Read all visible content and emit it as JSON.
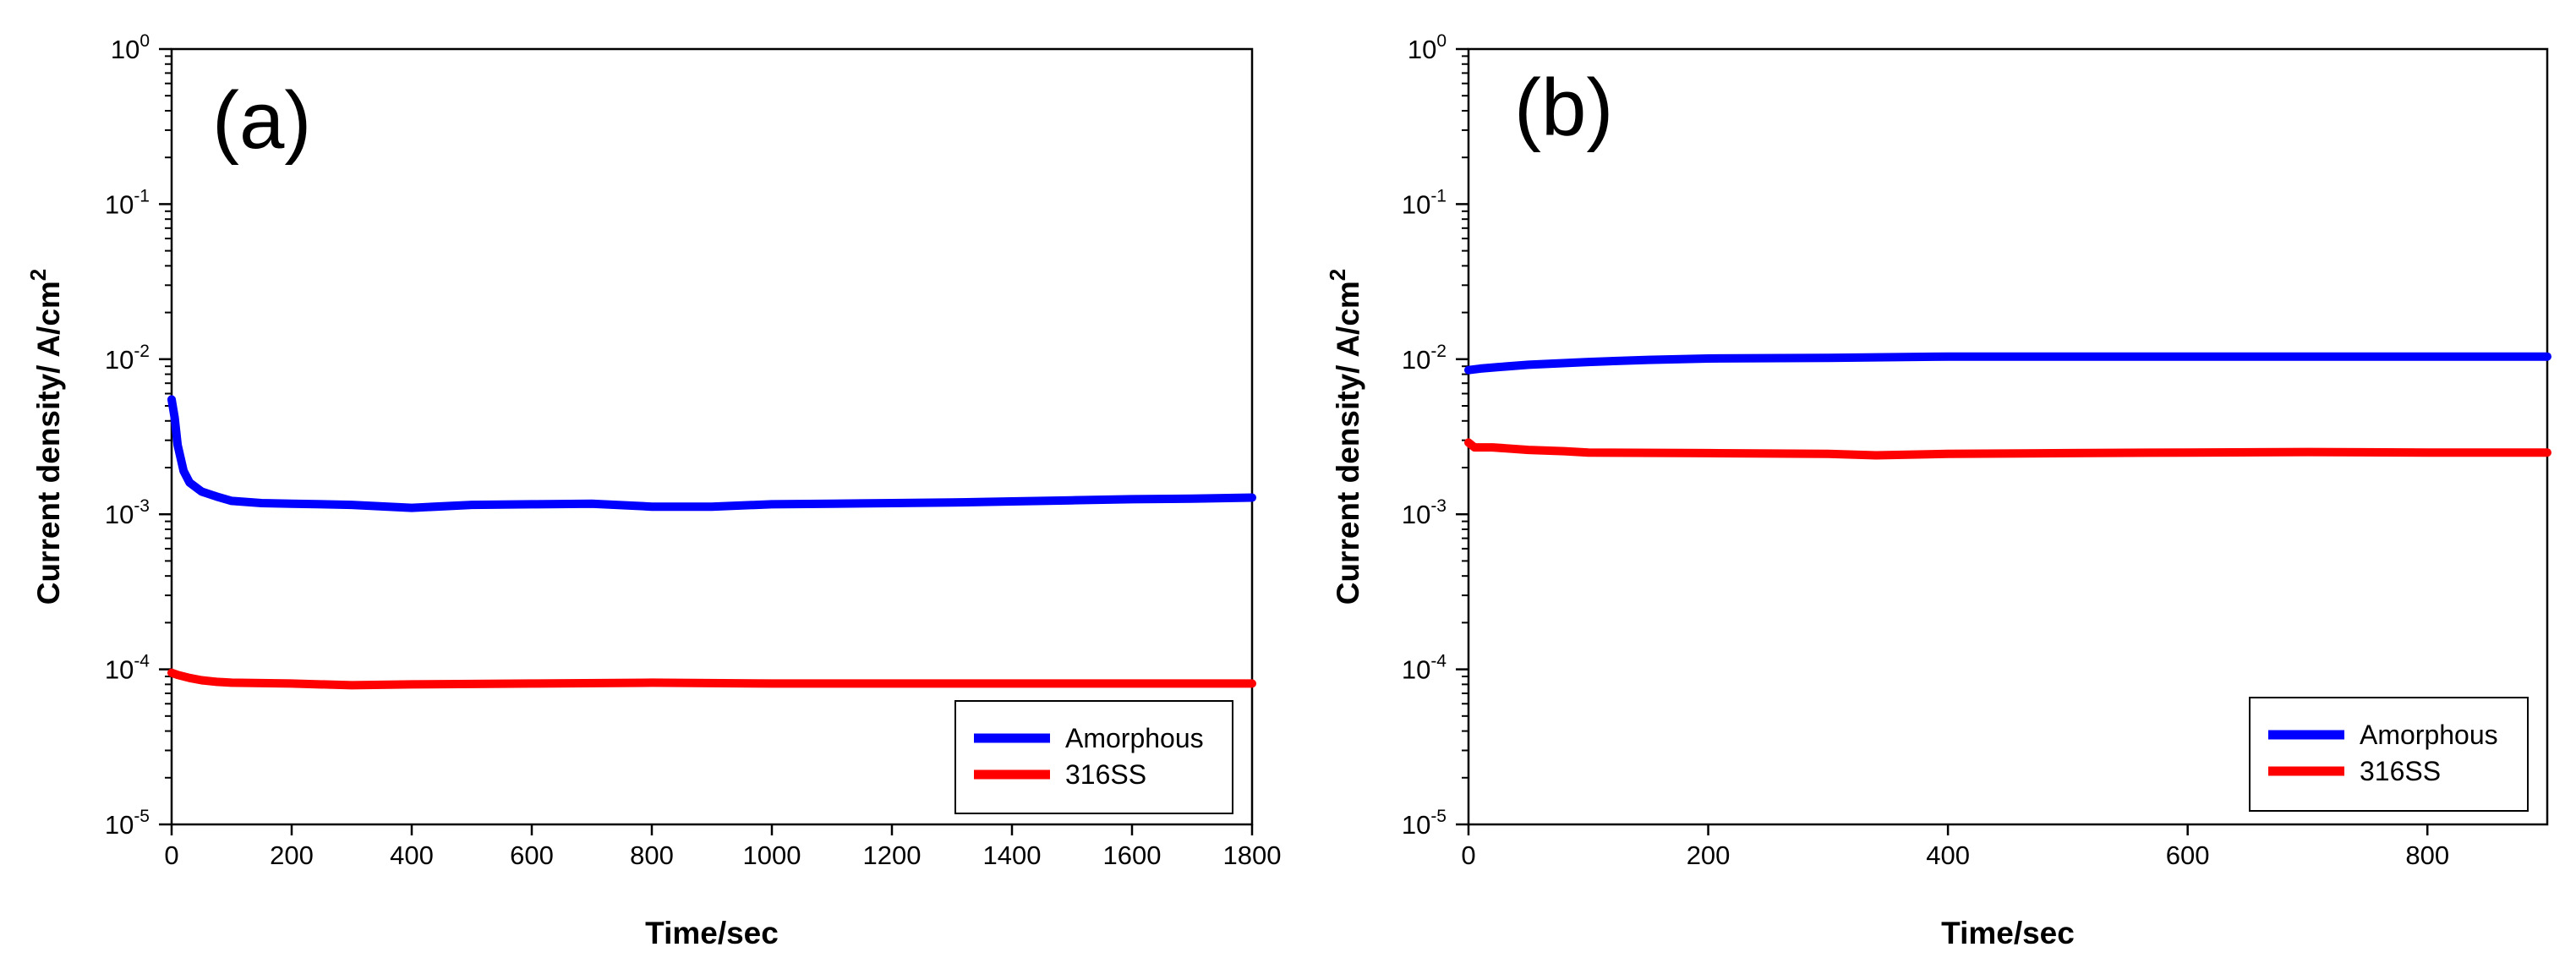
{
  "chart_data": [
    {
      "type": "line",
      "panel_label": "(a)",
      "xlabel": "Time/sec",
      "ylabel_main": "Current density/ A/cm",
      "ylabel_sup": "2",
      "y_scale": "log",
      "xlim": [
        0,
        1800
      ],
      "ylim": [
        1e-05,
        1
      ],
      "x_ticks": [
        0,
        200,
        400,
        600,
        800,
        1000,
        1200,
        1400,
        1600,
        1800
      ],
      "x_tick_labels": [
        "0",
        "200",
        "400",
        "600",
        "800",
        "1000",
        "1200",
        "1400",
        "1600",
        "1800"
      ],
      "y_tick_labels": [
        {
          "exp": 0,
          "base": "10",
          "sup": "0"
        },
        {
          "exp": -1,
          "base": "10",
          "sup": "-1"
        },
        {
          "exp": -2,
          "base": "10",
          "sup": "-2"
        },
        {
          "exp": -3,
          "base": "10",
          "sup": "-3"
        },
        {
          "exp": -4,
          "base": "10",
          "sup": "-4"
        },
        {
          "exp": -5,
          "base": "10",
          "sup": "-5"
        }
      ],
      "legend_position": "bottom-right",
      "series": [
        {
          "name": "Amorphous",
          "color": "#0000ff",
          "x": [
            0,
            5,
            10,
            20,
            30,
            50,
            75,
            100,
            150,
            200,
            300,
            400,
            500,
            600,
            700,
            800,
            900,
            1000,
            1100,
            1200,
            1300,
            1400,
            1500,
            1600,
            1700,
            1800
          ],
          "y": [
            0.0055,
            0.0042,
            0.0028,
            0.0019,
            0.0016,
            0.0014,
            0.0013,
            0.00122,
            0.00118,
            0.00117,
            0.00115,
            0.0011,
            0.00115,
            0.00116,
            0.00117,
            0.00112,
            0.00112,
            0.00116,
            0.00117,
            0.00118,
            0.00119,
            0.00121,
            0.00123,
            0.00125,
            0.00126,
            0.00128
          ]
        },
        {
          "name": "316SS",
          "color": "#ff0000",
          "x": [
            0,
            10,
            30,
            50,
            75,
            100,
            200,
            300,
            400,
            600,
            800,
            1000,
            1200,
            1400,
            1600,
            1800
          ],
          "y": [
            9.5e-05,
            9.2e-05,
            8.8e-05,
            8.5e-05,
            8.3e-05,
            8.2e-05,
            8.1e-05,
            7.9e-05,
            8e-05,
            8.1e-05,
            8.2e-05,
            8.1e-05,
            8.1e-05,
            8.1e-05,
            8.1e-05,
            8.1e-05
          ]
        }
      ]
    },
    {
      "type": "line",
      "panel_label": "(b)",
      "xlabel": "Time/sec",
      "ylabel_main": "Current density/ A/cm",
      "ylabel_sup": "2",
      "y_scale": "log",
      "xlim": [
        0,
        900
      ],
      "ylim": [
        1e-05,
        1
      ],
      "x_ticks": [
        0,
        200,
        400,
        600,
        800
      ],
      "x_tick_labels": [
        "0",
        "200",
        "400",
        "600",
        "800"
      ],
      "y_tick_labels": [
        {
          "exp": 0,
          "base": "10",
          "sup": "0"
        },
        {
          "exp": -1,
          "base": "10",
          "sup": "-1"
        },
        {
          "exp": -2,
          "base": "10",
          "sup": "-2"
        },
        {
          "exp": -3,
          "base": "10",
          "sup": "-3"
        },
        {
          "exp": -4,
          "base": "10",
          "sup": "-4"
        },
        {
          "exp": -5,
          "base": "10",
          "sup": "-5"
        }
      ],
      "legend_position": "bottom-right",
      "series": [
        {
          "name": "Amorphous",
          "color": "#0000ff",
          "x": [
            0,
            10,
            25,
            50,
            100,
            150,
            200,
            300,
            400,
            500,
            600,
            700,
            800,
            900
          ],
          "y": [
            0.0085,
            0.0087,
            0.0089,
            0.0092,
            0.0096,
            0.0099,
            0.0101,
            0.0102,
            0.0104,
            0.0104,
            0.0104,
            0.0104,
            0.0104,
            0.0104
          ]
        },
        {
          "name": "316SS",
          "color": "#ff0000",
          "x": [
            0,
            5,
            20,
            50,
            80,
            100,
            200,
            300,
            340,
            400,
            500,
            600,
            700,
            800,
            900
          ],
          "y": [
            0.0029,
            0.0027,
            0.0027,
            0.0026,
            0.00255,
            0.0025,
            0.00248,
            0.00245,
            0.0024,
            0.00245,
            0.00248,
            0.0025,
            0.00252,
            0.0025,
            0.0025
          ]
        }
      ]
    }
  ]
}
